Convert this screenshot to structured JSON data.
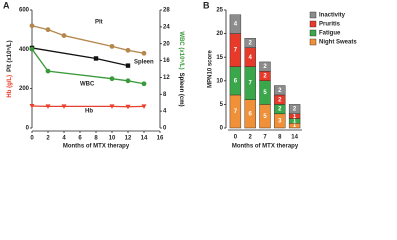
{
  "chart_data": [
    {
      "type": "line",
      "label": "A",
      "xlabel": "Months of MTX therapy",
      "ylabel": [
        "Hb (g/L)",
        "Plt (x10⁹/L)"
      ],
      "y2label": [
        "WBC (x10⁹/L)",
        "Spleen (cm)"
      ],
      "xlim": [
        0,
        16
      ],
      "xticks": [
        0,
        2,
        4,
        6,
        8,
        10,
        12,
        14,
        16
      ],
      "ylim": [
        0,
        600
      ],
      "yticks": [
        0,
        200,
        400,
        600
      ],
      "y2lim": [
        0,
        28
      ],
      "y2ticks": [
        0,
        4,
        8,
        12,
        16,
        20,
        24,
        28
      ],
      "series": [
        {
          "name": "Plt",
          "color": "#b5874c",
          "marker": "circle",
          "x": [
            0,
            2,
            4,
            10,
            12,
            14
          ],
          "values": [
            520,
            500,
            470,
            415,
            395,
            380
          ]
        },
        {
          "name": "Spleen",
          "color": "#111111",
          "marker": "square",
          "axis": "y2",
          "x": [
            0,
            8,
            12
          ],
          "values": [
            19,
            16.5,
            14.8
          ]
        },
        {
          "name": "WBC",
          "color": "#3a9a3a",
          "marker": "circle",
          "axis": "y2",
          "x": [
            0,
            2,
            10,
            12,
            14
          ],
          "values": [
            18.7,
            13.5,
            11.7,
            11.2,
            10.5
          ]
        },
        {
          "name": "Hb",
          "color": "#e8402c",
          "marker": "triangle",
          "x": [
            0,
            2,
            4,
            10,
            12,
            14
          ],
          "values": [
            112,
            110,
            110,
            110,
            108,
            110
          ]
        }
      ]
    },
    {
      "type": "stacked_bar",
      "label": "B",
      "xlabel": "Months of MTX therapy",
      "ylabel": "MPN10 score",
      "categories": [
        "0",
        "2",
        "7",
        "8",
        "14"
      ],
      "ylim": [
        0,
        25
      ],
      "yticks": [
        0,
        5,
        10,
        15,
        20,
        25
      ],
      "legend": "top-right",
      "series": [
        {
          "name": "Night Sweats",
          "color": "#f0913a",
          "values": [
            7,
            6,
            5,
            3,
            1
          ]
        },
        {
          "name": "Fatigue",
          "color": "#3aa84a",
          "values": [
            6,
            7,
            5,
            2,
            1
          ]
        },
        {
          "name": "Pruritis",
          "color": "#e83a2a",
          "values": [
            7,
            4,
            2,
            2,
            1
          ]
        },
        {
          "name": "Inactivity",
          "color": "#8c8c8c",
          "values": [
            4,
            2,
            2,
            2,
            2
          ]
        }
      ]
    }
  ]
}
